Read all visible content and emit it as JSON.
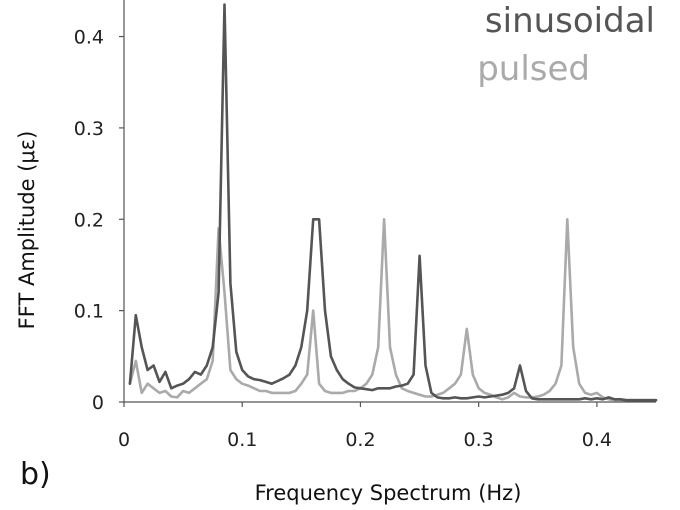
{
  "panel_label": "b)",
  "chart_data": {
    "type": "line",
    "xlabel": "Frequency Spectrum (Hz)",
    "ylabel": "FFT Amplitude (με)",
    "xlim": [
      0,
      0.45
    ],
    "ylim": [
      0,
      0.44
    ],
    "x_ticks": [
      "0",
      "0.1",
      "0.2",
      "0.3",
      "0.4"
    ],
    "y_ticks": [
      "0",
      "0.1",
      "0.2",
      "0.3",
      "0.4"
    ],
    "x_tick_values": [
      0,
      0.1,
      0.2,
      0.3,
      0.4
    ],
    "y_tick_values": [
      0,
      0.1,
      0.2,
      0.3,
      0.4
    ],
    "grid": false,
    "legend_position": "top-right",
    "series": [
      {
        "name": "sinusoidal",
        "color": "#555555",
        "x": [
          0.005,
          0.01,
          0.015,
          0.02,
          0.025,
          0.03,
          0.035,
          0.04,
          0.045,
          0.05,
          0.055,
          0.06,
          0.065,
          0.07,
          0.075,
          0.08,
          0.085,
          0.09,
          0.095,
          0.1,
          0.105,
          0.11,
          0.115,
          0.12,
          0.125,
          0.13,
          0.135,
          0.14,
          0.145,
          0.15,
          0.155,
          0.16,
          0.165,
          0.17,
          0.175,
          0.18,
          0.185,
          0.19,
          0.195,
          0.2,
          0.205,
          0.21,
          0.215,
          0.22,
          0.225,
          0.23,
          0.235,
          0.24,
          0.245,
          0.25,
          0.255,
          0.26,
          0.265,
          0.27,
          0.275,
          0.28,
          0.285,
          0.29,
          0.295,
          0.3,
          0.305,
          0.31,
          0.315,
          0.32,
          0.325,
          0.33,
          0.335,
          0.34,
          0.345,
          0.35,
          0.355,
          0.36,
          0.365,
          0.37,
          0.375,
          0.38,
          0.385,
          0.39,
          0.395,
          0.4,
          0.405,
          0.41,
          0.415,
          0.42,
          0.425,
          0.43,
          0.435,
          0.44,
          0.445,
          0.45
        ],
        "values": [
          0.02,
          0.095,
          0.06,
          0.035,
          0.04,
          0.022,
          0.033,
          0.015,
          0.018,
          0.02,
          0.025,
          0.033,
          0.03,
          0.04,
          0.06,
          0.12,
          0.435,
          0.13,
          0.055,
          0.035,
          0.028,
          0.025,
          0.024,
          0.022,
          0.02,
          0.023,
          0.026,
          0.03,
          0.04,
          0.06,
          0.1,
          0.2,
          0.2,
          0.1,
          0.05,
          0.035,
          0.025,
          0.02,
          0.016,
          0.015,
          0.014,
          0.013,
          0.015,
          0.015,
          0.015,
          0.017,
          0.018,
          0.02,
          0.03,
          0.16,
          0.04,
          0.01,
          0.005,
          0.004,
          0.004,
          0.005,
          0.004,
          0.004,
          0.005,
          0.006,
          0.005,
          0.006,
          0.007,
          0.008,
          0.01,
          0.015,
          0.04,
          0.012,
          0.004,
          0.003,
          0.003,
          0.003,
          0.003,
          0.003,
          0.003,
          0.003,
          0.003,
          0.004,
          0.003,
          0.004,
          0.003,
          0.005,
          0.003,
          0.003,
          0.002,
          0.002,
          0.002,
          0.002,
          0.002,
          0.002
        ]
      },
      {
        "name": "pulsed",
        "color": "#aaaaaa",
        "x": [
          0.005,
          0.01,
          0.015,
          0.02,
          0.025,
          0.03,
          0.035,
          0.04,
          0.045,
          0.05,
          0.055,
          0.06,
          0.065,
          0.07,
          0.075,
          0.08,
          0.085,
          0.09,
          0.095,
          0.1,
          0.105,
          0.11,
          0.115,
          0.12,
          0.125,
          0.13,
          0.135,
          0.14,
          0.145,
          0.15,
          0.155,
          0.16,
          0.165,
          0.17,
          0.175,
          0.18,
          0.185,
          0.19,
          0.195,
          0.2,
          0.205,
          0.21,
          0.215,
          0.22,
          0.225,
          0.23,
          0.235,
          0.24,
          0.245,
          0.25,
          0.255,
          0.26,
          0.265,
          0.27,
          0.275,
          0.28,
          0.285,
          0.29,
          0.295,
          0.3,
          0.305,
          0.31,
          0.315,
          0.32,
          0.325,
          0.33,
          0.335,
          0.34,
          0.345,
          0.35,
          0.355,
          0.36,
          0.365,
          0.37,
          0.375,
          0.38,
          0.385,
          0.39,
          0.395,
          0.4,
          0.405,
          0.41,
          0.415,
          0.42,
          0.425,
          0.43,
          0.435,
          0.44,
          0.445,
          0.45
        ],
        "values": [
          0.02,
          0.045,
          0.01,
          0.02,
          0.015,
          0.01,
          0.012,
          0.006,
          0.005,
          0.012,
          0.01,
          0.015,
          0.02,
          0.025,
          0.045,
          0.19,
          0.12,
          0.035,
          0.025,
          0.02,
          0.018,
          0.015,
          0.012,
          0.012,
          0.01,
          0.01,
          0.01,
          0.01,
          0.012,
          0.02,
          0.03,
          0.1,
          0.02,
          0.012,
          0.01,
          0.01,
          0.01,
          0.012,
          0.012,
          0.015,
          0.02,
          0.03,
          0.06,
          0.2,
          0.06,
          0.03,
          0.015,
          0.012,
          0.01,
          0.008,
          0.006,
          0.006,
          0.008,
          0.01,
          0.015,
          0.02,
          0.03,
          0.08,
          0.03,
          0.015,
          0.01,
          0.008,
          0.005,
          0.003,
          0.005,
          0.01,
          0.006,
          0.005,
          0.005,
          0.006,
          0.008,
          0.012,
          0.02,
          0.04,
          0.2,
          0.06,
          0.02,
          0.01,
          0.008,
          0.01,
          0.005,
          0.003,
          0.002,
          0.002,
          0.002,
          0.002,
          0.002,
          0.002,
          0.002,
          0.002
        ]
      }
    ]
  }
}
